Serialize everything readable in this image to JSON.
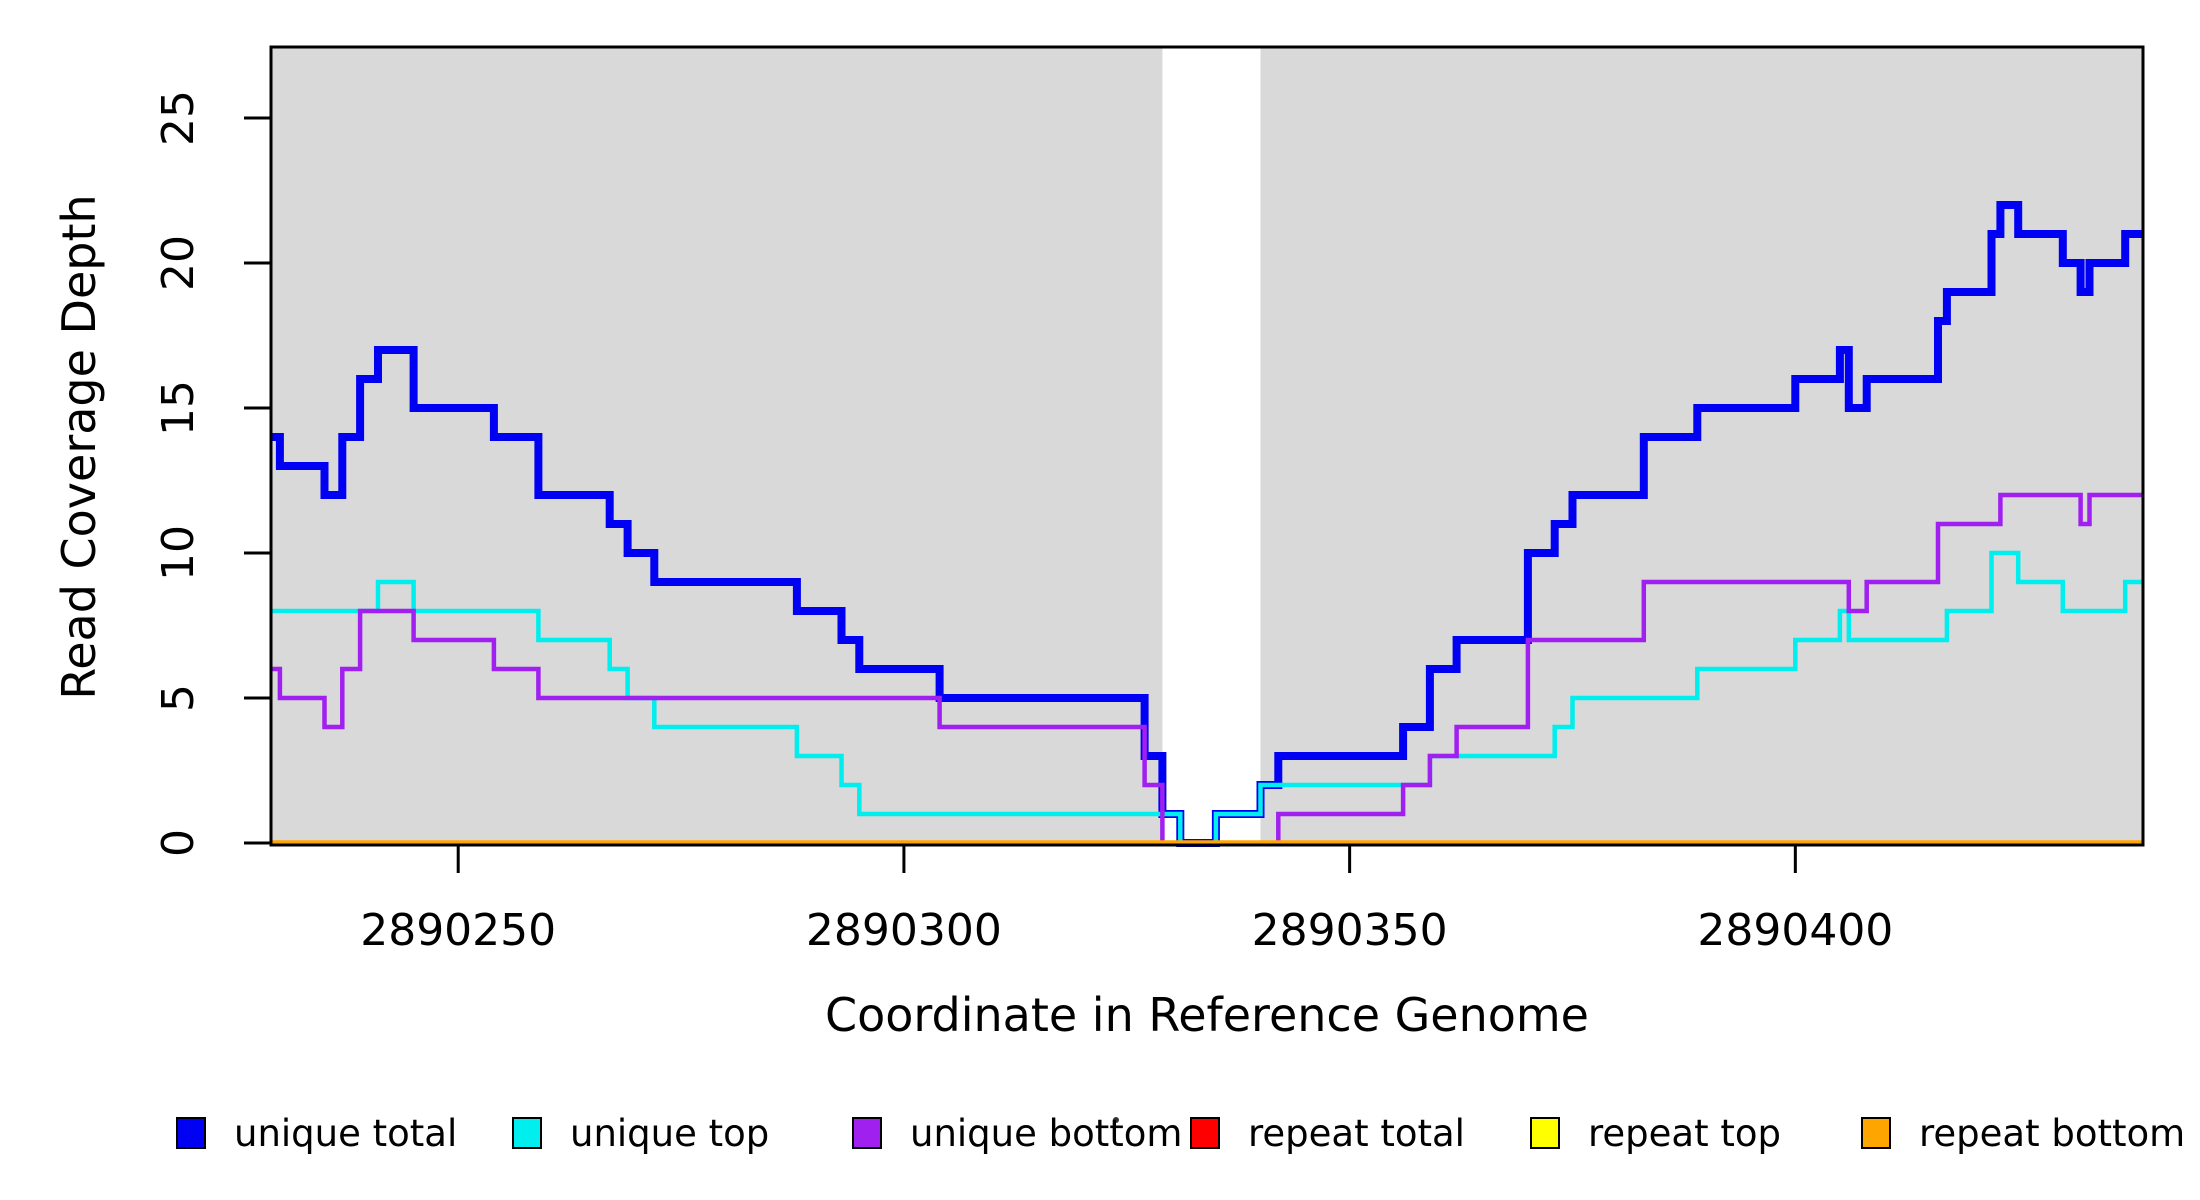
{
  "chart_data": {
    "type": "line",
    "subtype": "step-coverage",
    "title": "",
    "xlabel": "Coordinate in Reference Genome",
    "ylabel": "Read Coverage Depth",
    "x_range": [
      2890229,
      2890439
    ],
    "ylim": [
      0,
      27.5
    ],
    "x_ticks": [
      2890250,
      2890300,
      2890350,
      2890400
    ],
    "y_ticks": [
      0,
      5,
      10,
      15,
      20,
      25
    ],
    "grid": false,
    "plot_background_color": "#d9d9d9",
    "gap_band": {
      "from": 2890329,
      "to": 2890340,
      "color": "#ffffff"
    },
    "legend_position": "bottom",
    "series": [
      {
        "name": "unique total",
        "color": "#0000f2",
        "line_width": 8,
        "steps": [
          [
            2890229,
            14
          ],
          [
            2890230,
            13
          ],
          [
            2890235,
            12
          ],
          [
            2890237,
            14
          ],
          [
            2890239,
            16
          ],
          [
            2890241,
            17
          ],
          [
            2890245,
            15
          ],
          [
            2890254,
            14
          ],
          [
            2890259,
            12
          ],
          [
            2890267,
            11
          ],
          [
            2890269,
            10
          ],
          [
            2890272,
            9
          ],
          [
            2890288,
            8
          ],
          [
            2890293,
            7
          ],
          [
            2890295,
            6
          ],
          [
            2890304,
            5
          ],
          [
            2890327,
            3
          ],
          [
            2890329,
            1
          ],
          [
            2890331,
            0
          ],
          [
            2890335,
            1
          ],
          [
            2890340,
            2
          ],
          [
            2890342,
            3
          ],
          [
            2890356,
            4
          ],
          [
            2890359,
            6
          ],
          [
            2890362,
            7
          ],
          [
            2890370,
            10
          ],
          [
            2890373,
            11
          ],
          [
            2890375,
            12
          ],
          [
            2890383,
            14
          ],
          [
            2890389,
            15
          ],
          [
            2890400,
            16
          ],
          [
            2890405,
            17
          ],
          [
            2890406,
            15
          ],
          [
            2890408,
            16
          ],
          [
            2890416,
            18
          ],
          [
            2890417,
            19
          ],
          [
            2890422,
            21
          ],
          [
            2890423,
            22
          ],
          [
            2890425,
            21
          ],
          [
            2890430,
            20
          ],
          [
            2890432,
            19
          ],
          [
            2890433,
            20
          ],
          [
            2890437,
            21
          ]
        ]
      },
      {
        "name": "unique top",
        "color": "#00eeee",
        "line_width": 4.5,
        "steps": [
          [
            2890229,
            8
          ],
          [
            2890241,
            9
          ],
          [
            2890245,
            8
          ],
          [
            2890259,
            7
          ],
          [
            2890267,
            6
          ],
          [
            2890269,
            5
          ],
          [
            2890272,
            4
          ],
          [
            2890288,
            3
          ],
          [
            2890293,
            2
          ],
          [
            2890295,
            1
          ],
          [
            2890331,
            0
          ],
          [
            2890335,
            1
          ],
          [
            2890340,
            2
          ],
          [
            2890359,
            3
          ],
          [
            2890373,
            4
          ],
          [
            2890375,
            5
          ],
          [
            2890389,
            6
          ],
          [
            2890400,
            7
          ],
          [
            2890405,
            8
          ],
          [
            2890406,
            7
          ],
          [
            2890417,
            8
          ],
          [
            2890422,
            10
          ],
          [
            2890425,
            9
          ],
          [
            2890430,
            8
          ],
          [
            2890437,
            9
          ]
        ]
      },
      {
        "name": "unique bottom",
        "color": "#a020f0",
        "line_width": 4.5,
        "steps": [
          [
            2890229,
            6
          ],
          [
            2890230,
            5
          ],
          [
            2890235,
            4
          ],
          [
            2890237,
            6
          ],
          [
            2890239,
            8
          ],
          [
            2890245,
            7
          ],
          [
            2890254,
            6
          ],
          [
            2890259,
            5
          ],
          [
            2890304,
            4
          ],
          [
            2890327,
            2
          ],
          [
            2890329,
            0
          ],
          [
            2890342,
            1
          ],
          [
            2890356,
            2
          ],
          [
            2890359,
            3
          ],
          [
            2890362,
            4
          ],
          [
            2890370,
            7
          ],
          [
            2890383,
            9
          ],
          [
            2890406,
            8
          ],
          [
            2890408,
            9
          ],
          [
            2890416,
            11
          ],
          [
            2890423,
            12
          ],
          [
            2890432,
            11
          ],
          [
            2890433,
            12
          ]
        ]
      },
      {
        "name": "repeat total",
        "color": "#ff0000",
        "line_width": 4.5,
        "steps": [
          [
            2890229,
            0
          ]
        ]
      },
      {
        "name": "repeat top",
        "color": "#ffff00",
        "line_width": 4.5,
        "steps": [
          [
            2890229,
            0
          ]
        ]
      },
      {
        "name": "repeat bottom",
        "color": "#ffa500",
        "line_width": 5.5,
        "steps": [
          [
            2890229,
            0
          ]
        ]
      }
    ],
    "legend": [
      {
        "label": "unique total",
        "color": "#0000f2"
      },
      {
        "label": "unique top",
        "color": "#00eeee"
      },
      {
        "label": "unique bottom",
        "color": "#a020f0"
      },
      {
        "label": "repeat total",
        "color": "#ff0000"
      },
      {
        "label": "repeat top",
        "color": "#ffff00"
      },
      {
        "label": "repeat bottom",
        "color": "#ffa500"
      }
    ]
  },
  "labels": {
    "x_axis_title": "Coordinate in Reference Genome",
    "y_axis_title": "Read Coverage Depth"
  }
}
